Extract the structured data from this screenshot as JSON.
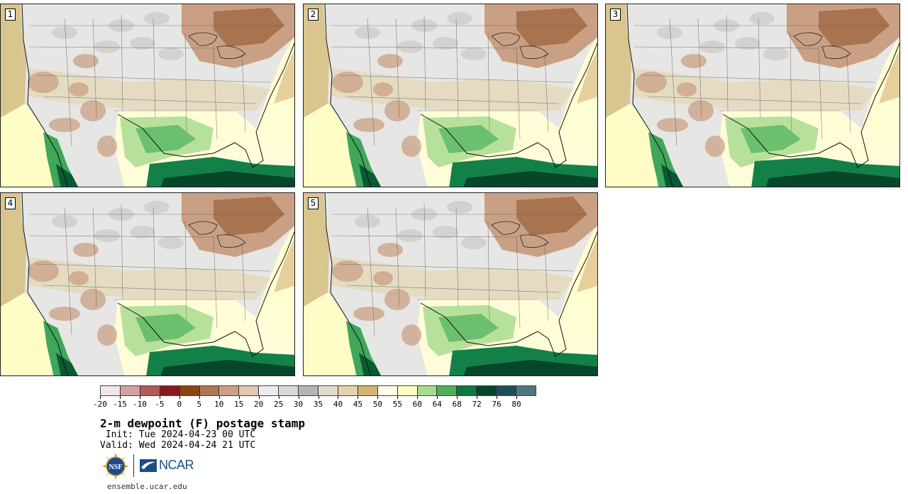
{
  "panels": [
    {
      "label": "1"
    },
    {
      "label": "2"
    },
    {
      "label": "3"
    },
    {
      "label": "4"
    },
    {
      "label": "5"
    }
  ],
  "colorbar": {
    "colors": [
      "#f3e6e6",
      "#d4a1a1",
      "#b25a5a",
      "#8b1a1a",
      "#8b4513",
      "#b07552",
      "#c9a084",
      "#e0c6b3",
      "#ececec",
      "#d9d9d9",
      "#b5b5b5",
      "#dedcd0",
      "#e3d3ad",
      "#d4b473",
      "#fffde8",
      "#fffdc2",
      "#a8dc8c",
      "#4fae5c",
      "#0e7a3c",
      "#06462a",
      "#1e4e5a",
      "#4e7880"
    ],
    "tick_labels": [
      "-20",
      "-15",
      "-10",
      "-5",
      "0",
      "5",
      "10",
      "15",
      "20",
      "25",
      "30",
      "35",
      "40",
      "45",
      "50",
      "55",
      "60",
      "64",
      "68",
      "72",
      "76",
      "80"
    ]
  },
  "title": "2-m dewpoint (F) postage stamp",
  "init_text": " Init: Tue 2024-04-23 00 UTC",
  "valid_text": "Valid: Wed 2024-04-24 21 UTC",
  "logos": {
    "nsf": "NSF",
    "ncar": "NCAR"
  },
  "site": "ensemble.ucar.edu"
}
